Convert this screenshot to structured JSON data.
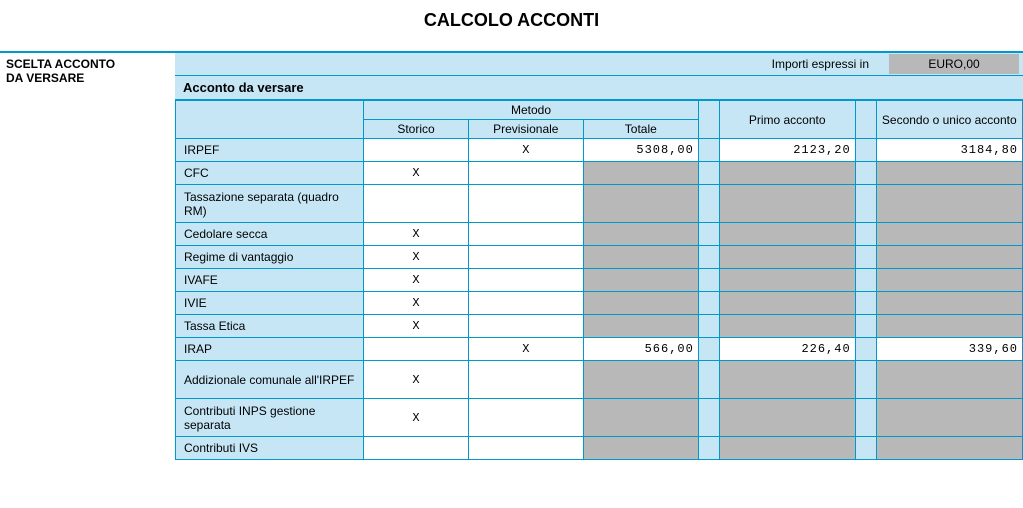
{
  "title": "CALCOLO ACCONTI",
  "left_header_line1": "SCELTA ACCONTO",
  "left_header_line2": "DA VERSARE",
  "currency_label": "Importi espressi in",
  "currency_value": "EURO,00",
  "section_title": "Acconto da versare",
  "headers": {
    "metodo": "Metodo",
    "storico": "Storico",
    "previsionale": "Previsionale",
    "totale": "Totale",
    "primo_acconto": "Primo acconto",
    "secondo_acconto": "Secondo o unico acconto"
  },
  "rows": [
    {
      "label": "IRPEF",
      "storico": "",
      "previsionale": "X",
      "totale": "5308,00",
      "primo": "2123,20",
      "secondo": "3184,80",
      "vals_grey": false
    },
    {
      "label": "CFC",
      "storico": "X",
      "previsionale": "",
      "totale": "",
      "primo": "",
      "secondo": "",
      "vals_grey": true
    },
    {
      "label": "Tassazione separata (quadro RM)",
      "storico": "",
      "previsionale": "",
      "totale": "",
      "primo": "",
      "secondo": "",
      "vals_grey": true,
      "tall": true
    },
    {
      "label": "Cedolare secca",
      "storico": "X",
      "previsionale": "",
      "totale": "",
      "primo": "",
      "secondo": "",
      "vals_grey": true
    },
    {
      "label": "Regime di vantaggio",
      "storico": "X",
      "previsionale": "",
      "totale": "",
      "primo": "",
      "secondo": "",
      "vals_grey": true
    },
    {
      "label": "IVAFE",
      "storico": "X",
      "previsionale": "",
      "totale": "",
      "primo": "",
      "secondo": "",
      "vals_grey": true
    },
    {
      "label": "IVIE",
      "storico": "X",
      "previsionale": "",
      "totale": "",
      "primo": "",
      "secondo": "",
      "vals_grey": true
    },
    {
      "label": "Tassa Etica",
      "storico": "X",
      "previsionale": "",
      "totale": "",
      "primo": "",
      "secondo": "",
      "vals_grey": true
    },
    {
      "label": "IRAP",
      "storico": "",
      "previsionale": "X",
      "totale": "566,00",
      "primo": "226,40",
      "secondo": "339,60",
      "vals_grey": false
    },
    {
      "label": "Addizionale comunale all'IRPEF",
      "storico": "X",
      "previsionale": "",
      "totale": "",
      "primo": "",
      "secondo": "",
      "vals_grey": true,
      "tall": true
    },
    {
      "label": "Contributi INPS gestione separata",
      "storico": "X",
      "previsionale": "",
      "totale": "",
      "primo": "",
      "secondo": "",
      "vals_grey": true,
      "tall": true
    },
    {
      "label": "Contributi IVS",
      "storico": "",
      "previsionale": "",
      "totale": "",
      "primo": "",
      "secondo": "",
      "vals_grey": true
    }
  ],
  "colors": {
    "border": "#0099cc",
    "header_bg": "#c6e6f5",
    "grey_cell": "#b8b8b8",
    "white_cell": "#ffffff"
  },
  "col_widths": {
    "label": 180,
    "storico": 100,
    "previsionale": 110,
    "totale": 110,
    "gap": 20,
    "primo": 130,
    "secondo": 140
  }
}
